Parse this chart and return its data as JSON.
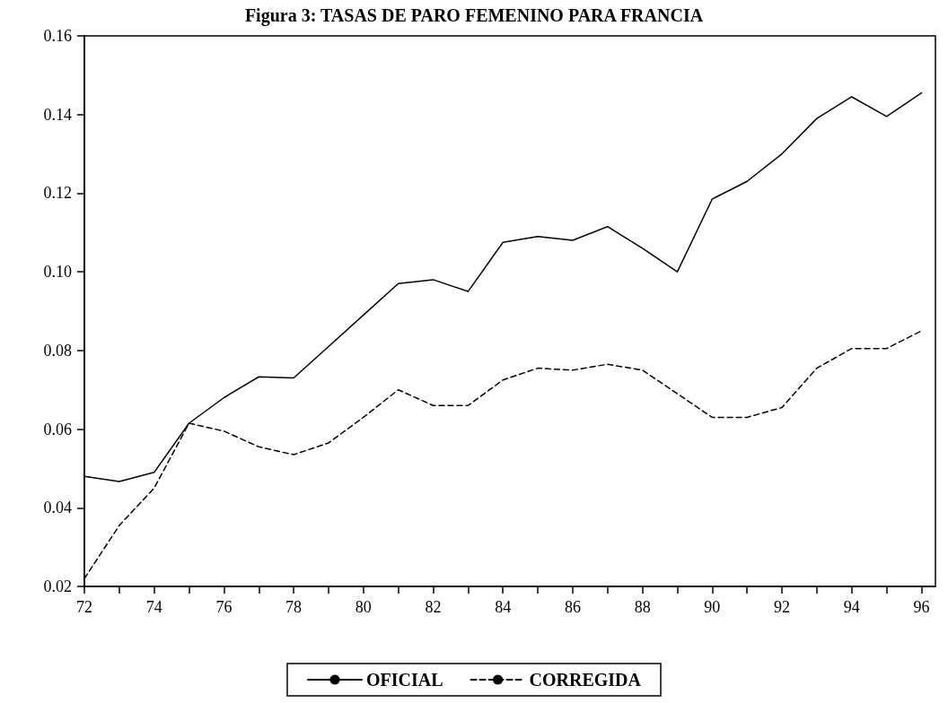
{
  "chart_data": {
    "type": "line",
    "title": "Figura 3: TASAS DE PARO FEMENINO PARA FRANCIA",
    "x": [
      72,
      73,
      74,
      75,
      76,
      77,
      78,
      79,
      80,
      81,
      82,
      83,
      84,
      85,
      86,
      87,
      88,
      89,
      90,
      91,
      92,
      93,
      94,
      95,
      96
    ],
    "series": [
      {
        "name": "OFICIAL",
        "color": "#000000",
        "line_style": "solid",
        "values": [
          0.048,
          0.0467,
          0.049,
          0.0615,
          0.068,
          0.0733,
          0.073,
          0.081,
          0.089,
          0.097,
          0.098,
          0.095,
          0.1075,
          0.109,
          0.108,
          0.1115,
          0.106,
          0.1,
          0.1185,
          0.123,
          0.13,
          0.139,
          0.1445,
          0.1395,
          0.1455
        ]
      },
      {
        "name": "CORREGIDA",
        "color": "#000000",
        "line_style": "dashed",
        "values": [
          0.022,
          0.0355,
          0.045,
          0.0615,
          0.0595,
          0.0555,
          0.0535,
          0.0565,
          0.063,
          0.07,
          0.066,
          0.066,
          0.0725,
          0.0755,
          0.075,
          0.0765,
          0.075,
          0.069,
          0.063,
          0.063,
          0.0655,
          0.0755,
          0.0805,
          0.0805,
          0.085
        ]
      }
    ],
    "xlim": [
      72,
      96.4
    ],
    "xticks": [
      72,
      {
        "value": 73,
        "label": null
      },
      74,
      {
        "value": 75,
        "label": null
      },
      76,
      {
        "value": 77,
        "label": null
      },
      78,
      {
        "value": 79,
        "label": null
      },
      80,
      {
        "value": 81,
        "label": null
      },
      82,
      {
        "value": 83,
        "label": null
      },
      84,
      {
        "value": 85,
        "label": null
      },
      86,
      {
        "value": 87,
        "label": null
      },
      88,
      {
        "value": 89,
        "label": null
      },
      90,
      {
        "value": 91,
        "label": null
      },
      92,
      {
        "value": 93,
        "label": null
      },
      94,
      {
        "value": 95,
        "label": null
      },
      96
    ],
    "ylim": [
      0.02,
      0.16
    ],
    "yticks": [
      {
        "value": 0.02,
        "label": "0.02"
      },
      {
        "value": 0.04,
        "label": "0.04"
      },
      {
        "value": 0.06,
        "label": "0.06"
      },
      {
        "value": 0.08,
        "label": "0.08"
      },
      {
        "value": 0.1,
        "label": "0.10"
      },
      {
        "value": 0.12,
        "label": "0.12"
      },
      {
        "value": 0.14,
        "label": "0.14"
      },
      {
        "value": 0.16,
        "label": "0.16"
      }
    ],
    "grid": false,
    "legend": "bottom",
    "marker": "none"
  }
}
